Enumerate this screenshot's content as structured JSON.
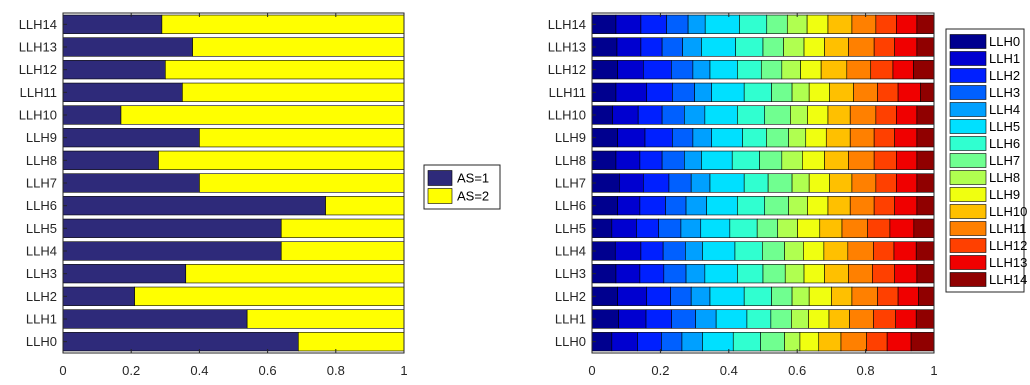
{
  "chart_data": [
    {
      "type": "bar",
      "orientation": "horizontal",
      "stacked": true,
      "categories": [
        "LLH0",
        "LLH1",
        "LLH2",
        "LLH3",
        "LLH4",
        "LLH5",
        "LLH6",
        "LLH7",
        "LLH8",
        "LLH9",
        "LLH10",
        "LLH11",
        "LLH12",
        "LLH13",
        "LLH14"
      ],
      "series": [
        {
          "name": "AS=1",
          "color": "#2e2a7a",
          "values": [
            0.69,
            0.54,
            0.21,
            0.36,
            0.64,
            0.64,
            0.77,
            0.4,
            0.28,
            0.4,
            0.17,
            0.35,
            0.3,
            0.38,
            0.29
          ]
        },
        {
          "name": "AS=2",
          "color": "#ffff00",
          "values": [
            0.31,
            0.46,
            0.79,
            0.64,
            0.36,
            0.36,
            0.23,
            0.6,
            0.72,
            0.6,
            0.83,
            0.65,
            0.7,
            0.62,
            0.71
          ]
        }
      ],
      "xlim": [
        0,
        1
      ],
      "xticks": [
        "0",
        "0.2",
        "0.4",
        "0.6",
        "0.8",
        "1"
      ],
      "legend_placement": "east-outside",
      "grid": false
    },
    {
      "type": "bar",
      "orientation": "horizontal",
      "stacked": true,
      "categories": [
        "LLH0",
        "LLH1",
        "LLH2",
        "LLH3",
        "LLH4",
        "LLH5",
        "LLH6",
        "LLH7",
        "LLH8",
        "LLH9",
        "LLH10",
        "LLH11",
        "LLH12",
        "LLH13",
        "LLH14"
      ],
      "series": [
        {
          "name": "LLH0",
          "color": "#00008f",
          "values": [
            0.058,
            0.078,
            0.075,
            0.07,
            0.068,
            0.058,
            0.075,
            0.08,
            0.07,
            0.075,
            0.06,
            0.07,
            0.075,
            0.073,
            0.07
          ]
        },
        {
          "name": "LLH1",
          "color": "#0000d0",
          "values": [
            0.075,
            0.08,
            0.085,
            0.07,
            0.075,
            0.072,
            0.065,
            0.07,
            0.07,
            0.08,
            0.075,
            0.09,
            0.075,
            0.07,
            0.073
          ]
        },
        {
          "name": "LLH2",
          "color": "#0020ff",
          "values": [
            0.07,
            0.075,
            0.07,
            0.07,
            0.065,
            0.065,
            0.075,
            0.075,
            0.065,
            0.08,
            0.07,
            0.075,
            0.082,
            0.062,
            0.075
          ]
        },
        {
          "name": "LLH3",
          "color": "#0060ff",
          "values": [
            0.06,
            0.07,
            0.06,
            0.065,
            0.065,
            0.065,
            0.06,
            0.065,
            0.065,
            0.06,
            0.065,
            0.065,
            0.063,
            0.06,
            0.063
          ]
        },
        {
          "name": "LLH4",
          "color": "#00a0ff",
          "values": [
            0.06,
            0.06,
            0.055,
            0.055,
            0.05,
            0.058,
            0.06,
            0.055,
            0.05,
            0.055,
            0.06,
            0.05,
            0.05,
            0.055,
            0.05
          ]
        },
        {
          "name": "LLH5",
          "color": "#00e0ff",
          "values": [
            0.09,
            0.09,
            0.1,
            0.095,
            0.095,
            0.085,
            0.09,
            0.1,
            0.09,
            0.09,
            0.095,
            0.095,
            0.08,
            0.1,
            0.1
          ]
        },
        {
          "name": "LLH6",
          "color": "#30ffd0",
          "values": [
            0.08,
            0.07,
            0.08,
            0.075,
            0.08,
            0.08,
            0.08,
            0.07,
            0.08,
            0.07,
            0.08,
            0.08,
            0.07,
            0.08,
            0.08
          ]
        },
        {
          "name": "LLH7",
          "color": "#70ff90",
          "values": [
            0.07,
            0.06,
            0.06,
            0.065,
            0.065,
            0.06,
            0.07,
            0.07,
            0.065,
            0.065,
            0.075,
            0.06,
            0.06,
            0.06,
            0.06
          ]
        },
        {
          "name": "LLH8",
          "color": "#b0ff50",
          "values": [
            0.045,
            0.05,
            0.05,
            0.055,
            0.055,
            0.058,
            0.055,
            0.05,
            0.06,
            0.05,
            0.05,
            0.05,
            0.055,
            0.06,
            0.058
          ]
        },
        {
          "name": "LLH9",
          "color": "#f0ff10",
          "values": [
            0.055,
            0.06,
            0.065,
            0.06,
            0.06,
            0.065,
            0.06,
            0.06,
            0.065,
            0.06,
            0.06,
            0.06,
            0.06,
            0.06,
            0.061
          ]
        },
        {
          "name": "LLH10",
          "color": "#ffc000",
          "values": [
            0.065,
            0.06,
            0.06,
            0.07,
            0.07,
            0.065,
            0.065,
            0.065,
            0.07,
            0.07,
            0.065,
            0.07,
            0.075,
            0.07,
            0.07
          ]
        },
        {
          "name": "LLH11",
          "color": "#ff8000",
          "values": [
            0.075,
            0.07,
            0.075,
            0.07,
            0.075,
            0.075,
            0.07,
            0.07,
            0.075,
            0.07,
            0.075,
            0.07,
            0.07,
            0.075,
            0.07
          ]
        },
        {
          "name": "LLH12",
          "color": "#ff4000",
          "values": [
            0.06,
            0.065,
            0.06,
            0.065,
            0.06,
            0.065,
            0.06,
            0.06,
            0.065,
            0.06,
            0.06,
            0.06,
            0.065,
            0.06,
            0.06
          ]
        },
        {
          "name": "LLH13",
          "color": "#f00000",
          "values": [
            0.07,
            0.06,
            0.06,
            0.065,
            0.065,
            0.07,
            0.065,
            0.06,
            0.06,
            0.065,
            0.06,
            0.065,
            0.06,
            0.065,
            0.06
          ]
        },
        {
          "name": "LLH14",
          "color": "#900000",
          "values": [
            0.067,
            0.052,
            0.045,
            0.05,
            0.052,
            0.059,
            0.05,
            0.05,
            0.05,
            0.05,
            0.05,
            0.04,
            0.06,
            0.05,
            0.05
          ]
        }
      ],
      "xlim": [
        0,
        1
      ],
      "xticks": [
        "0",
        "0.2",
        "0.4",
        "0.6",
        "0.8",
        "1"
      ],
      "legend_placement": "east-outside",
      "grid": false
    }
  ]
}
